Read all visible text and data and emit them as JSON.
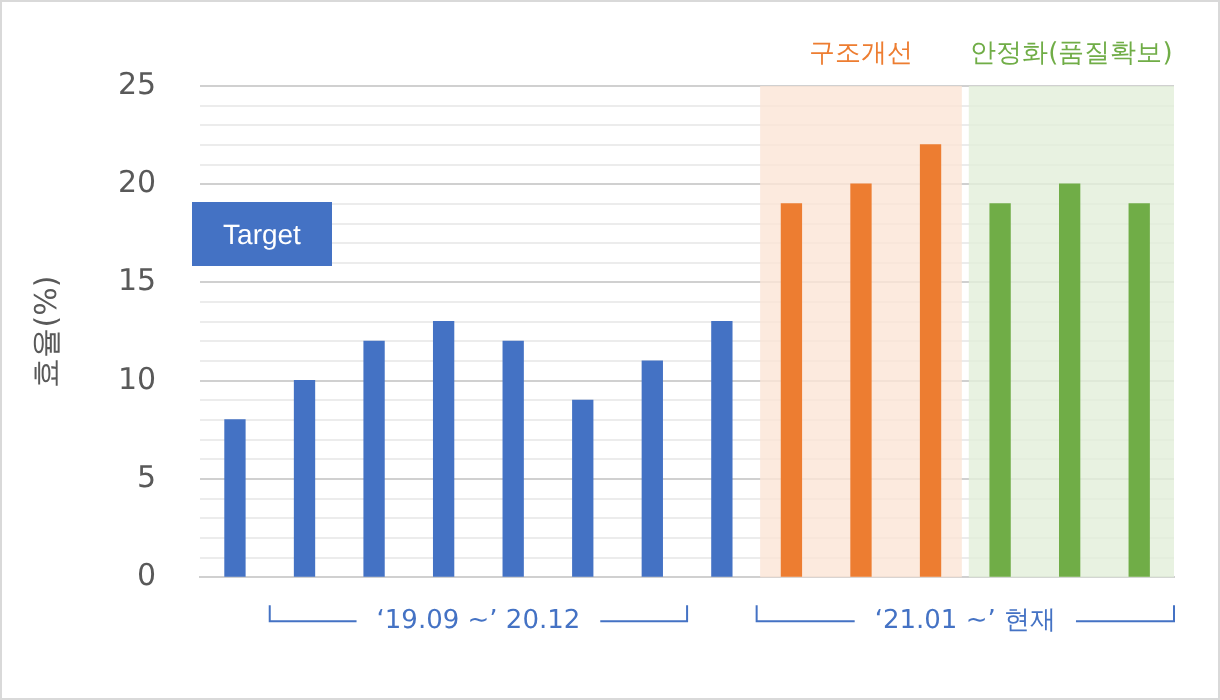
{
  "chart_data": {
    "type": "bar",
    "ylabel": "효율(%)",
    "categories": [
      null,
      null,
      null,
      null,
      null,
      null,
      null,
      null,
      null,
      null,
      null,
      null,
      null,
      null
    ],
    "values": [
      8,
      10,
      12,
      13,
      12,
      9,
      11,
      13,
      19,
      20,
      22,
      19,
      20,
      19
    ],
    "colors": [
      "#4472c4",
      "#4472c4",
      "#4472c4",
      "#4472c4",
      "#4472c4",
      "#4472c4",
      "#4472c4",
      "#4472c4",
      "#ed7d31",
      "#ed7d31",
      "#ed7d31",
      "#70ad47",
      "#70ad47",
      "#70ad47"
    ],
    "ylim": [
      0,
      25
    ],
    "yticks": [
      0,
      {
        "value": 1,
        "label": null
      },
      {
        "value": 2,
        "label": null
      },
      {
        "value": 3,
        "label": null
      },
      {
        "value": 4,
        "label": null
      },
      5,
      {
        "value": 6,
        "label": null
      },
      {
        "value": 7,
        "label": null
      },
      {
        "value": 8,
        "label": null
      },
      {
        "value": 9,
        "label": null
      },
      10,
      {
        "value": 11,
        "label": null
      },
      {
        "value": 12,
        "label": null
      },
      {
        "value": 13,
        "label": null
      },
      {
        "value": 14,
        "label": null
      },
      15,
      {
        "value": 16,
        "label": null
      },
      {
        "value": 17,
        "label": null
      },
      {
        "value": 18,
        "label": null
      },
      {
        "value": 19,
        "label": null
      },
      20,
      {
        "value": 21,
        "label": null
      },
      {
        "value": 22,
        "label": null
      },
      {
        "value": 23,
        "label": null
      },
      {
        "value": 24,
        "label": null
      },
      25
    ],
    "grid": "y",
    "legend": false,
    "annotations": [
      "Target",
      "구조개선",
      "안정화(품질확보)",
      "‘19.09 ~’ 20.12",
      "‘21.01 ~’ 현재"
    ]
  }
}
